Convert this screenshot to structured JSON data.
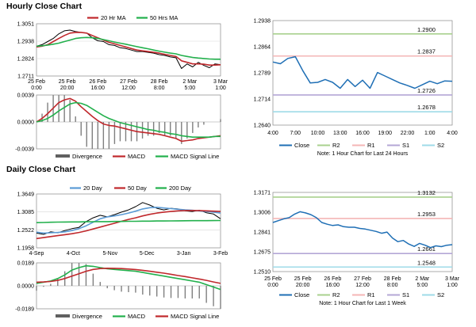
{
  "titles": {
    "hourly": "Hourly Close Chart",
    "daily": "Daily Close Chart"
  },
  "colors": {
    "close": "#000000",
    "red": "#c0282c",
    "green": "#22b04c",
    "blue": "#5b9bd5",
    "r2": "#a9d18e",
    "r1": "#f4b6b6",
    "s1": "#b4a7d6",
    "s2": "#9fdbe8",
    "closeLine": "#1f6fb5",
    "hist": "#7f7f7f"
  },
  "chart_data": [
    {
      "type": "line",
      "panel": "hourly-price",
      "ylim": [
        1.2711,
        1.3051
      ],
      "y_ticks": [
        "1.3051",
        "1.2938",
        "1.2824",
        "1.2711"
      ],
      "x_ticks": [
        "25 Feb\n0:00",
        "25 Feb\n20:00",
        "26 Feb\n16:00",
        "27 Feb\n12:00",
        "28 Feb\n8:00",
        "2 Mar\n5:00",
        "3 Mar\n1:00"
      ],
      "legend": [
        "20 Hr MA",
        "50 Hrs MA"
      ],
      "series": [
        {
          "name": "Close",
          "color": "close",
          "values": [
            1.2905,
            1.2915,
            1.2935,
            1.2955,
            1.2985,
            1.3005,
            1.301,
            1.3,
            1.2995,
            1.299,
            1.296,
            1.294,
            1.2935,
            1.2915,
            1.291,
            1.2895,
            1.289,
            1.288,
            1.287,
            1.287,
            1.2865,
            1.286,
            1.285,
            1.2845,
            1.2835,
            1.283,
            1.276,
            1.279,
            1.277,
            1.28,
            1.278,
            1.2765,
            1.279,
            1.2785
          ]
        },
        {
          "name": "20 Hr MA",
          "color": "red",
          "values": [
            1.29,
            1.2905,
            1.2915,
            1.2935,
            1.2955,
            1.2975,
            1.299,
            1.2995,
            1.2995,
            1.299,
            1.2975,
            1.296,
            1.2945,
            1.293,
            1.292,
            1.291,
            1.29,
            1.289,
            1.288,
            1.2875,
            1.287,
            1.2865,
            1.286,
            1.2852,
            1.2845,
            1.2838,
            1.281,
            1.28,
            1.279,
            1.279,
            1.2788,
            1.2782,
            1.2782,
            1.2784
          ]
        },
        {
          "name": "50 Hrs MA",
          "color": "green",
          "values": [
            1.2905,
            1.2908,
            1.2912,
            1.2918,
            1.2925,
            1.2935,
            1.2945,
            1.2955,
            1.296,
            1.2962,
            1.296,
            1.2955,
            1.2948,
            1.294,
            1.2932,
            1.2925,
            1.2918,
            1.291,
            1.2902,
            1.2895,
            1.2888,
            1.288,
            1.2873,
            1.2866,
            1.286,
            1.2855,
            1.2845,
            1.2838,
            1.2832,
            1.2828,
            1.2825,
            1.2822,
            1.282,
            1.282
          ]
        }
      ]
    },
    {
      "type": "line",
      "panel": "hourly-macd",
      "ylim": [
        -0.0039,
        0.0039
      ],
      "y_ticks": [
        "0.0039",
        "0.0000",
        "-0.0039"
      ],
      "legend": [
        "Divergence",
        "MACD",
        "MACD Signal Line"
      ],
      "series": [
        {
          "name": "MACD",
          "color": "red",
          "values": [
            0.0,
            0.0005,
            0.0012,
            0.002,
            0.0028,
            0.0032,
            0.0034,
            0.003,
            0.0022,
            0.0015,
            0.0008,
            0.0002,
            -0.0003,
            -0.0005,
            -0.0006,
            -0.0008,
            -0.001,
            -0.0012,
            -0.0014,
            -0.0015,
            -0.0016,
            -0.0017,
            -0.0018,
            -0.002,
            -0.0022,
            -0.0024,
            -0.0028,
            -0.0027,
            -0.0026,
            -0.0024,
            -0.0023,
            -0.0022,
            -0.0021,
            -0.002
          ]
        },
        {
          "name": "MACD Signal Line",
          "color": "green",
          "values": [
            0.0,
            0.0002,
            0.0005,
            0.001,
            0.0016,
            0.0021,
            0.0026,
            0.0028,
            0.0027,
            0.0024,
            0.0019,
            0.0014,
            0.0009,
            0.0005,
            0.0002,
            -0.0001,
            -0.0003,
            -0.0005,
            -0.0007,
            -0.0009,
            -0.0011,
            -0.0012,
            -0.0014,
            -0.0015,
            -0.0017,
            -0.0018,
            -0.002,
            -0.0021,
            -0.0022,
            -0.0022,
            -0.0022,
            -0.0022,
            -0.0021,
            -0.0021
          ]
        }
      ]
    },
    {
      "type": "line",
      "panel": "hourly-pivot",
      "ylim": [
        1.264,
        1.2938
      ],
      "y_ticks": [
        "1.2938",
        "1.2864",
        "1.2789",
        "1.2714",
        "1.2640"
      ],
      "x_ticks": [
        "4:00",
        "7:00",
        "10:00",
        "13:00",
        "16:00",
        "19:00",
        "22:00",
        "1:00",
        "4:00"
      ],
      "levels": [
        {
          "name": "R2",
          "value": 1.29,
          "label": "1.2900",
          "color": "r2"
        },
        {
          "name": "R1",
          "value": 1.2837,
          "label": "1.2837",
          "color": "r1"
        },
        {
          "name": "S1",
          "value": 1.2726,
          "label": "1.2726",
          "color": "s1"
        },
        {
          "name": "S2",
          "value": 1.2678,
          "label": "1.2678",
          "color": "s2"
        }
      ],
      "series": [
        {
          "name": "Close",
          "color": "closeLine",
          "values": [
            1.282,
            1.2815,
            1.283,
            1.2835,
            1.2795,
            1.276,
            1.2762,
            1.277,
            1.2762,
            1.2745,
            1.277,
            1.275,
            1.2768,
            1.2745,
            1.279,
            1.278,
            1.277,
            1.276,
            1.2753,
            1.2745,
            1.2755,
            1.2765,
            1.2758,
            1.2766,
            1.2765
          ]
        }
      ],
      "legend": [
        "Close",
        "R2",
        "R1",
        "S1",
        "S2"
      ],
      "note": "Note: 1 Hour Chart for Last 24 Hours"
    },
    {
      "type": "line",
      "panel": "daily-price",
      "ylim": [
        1.1958,
        1.3649
      ],
      "y_ticks": [
        "1.3649",
        "1.3085",
        "1.2522",
        "1.1958"
      ],
      "x_ticks": [
        "4-Sep",
        "4-Oct",
        "5-Nov",
        "5-Dec",
        "3-Jan",
        "3-Feb"
      ],
      "legend": [
        "20 Day",
        "50 Day",
        "200 Day"
      ],
      "series": [
        {
          "name": "Close",
          "color": "close",
          "values": [
            1.242,
            1.238,
            1.246,
            1.243,
            1.25,
            1.256,
            1.26,
            1.278,
            1.29,
            1.298,
            1.293,
            1.3,
            1.308,
            1.315,
            1.325,
            1.338,
            1.33,
            1.32,
            1.315,
            1.32,
            1.318,
            1.312,
            1.31,
            1.314,
            1.306,
            1.302,
            1.287
          ]
        },
        {
          "name": "20 Day",
          "color": "blue",
          "values": [
            1.245,
            1.242,
            1.243,
            1.244,
            1.246,
            1.25,
            1.256,
            1.265,
            1.276,
            1.287,
            1.293,
            1.296,
            1.3,
            1.305,
            1.311,
            1.318,
            1.322,
            1.323,
            1.321,
            1.319,
            1.317,
            1.315,
            1.314,
            1.312,
            1.31,
            1.308,
            1.305
          ]
        },
        {
          "name": "50 Day",
          "color": "red",
          "values": [
            1.225,
            1.228,
            1.231,
            1.234,
            1.237,
            1.24,
            1.244,
            1.249,
            1.255,
            1.261,
            1.267,
            1.273,
            1.279,
            1.285,
            1.29,
            1.296,
            1.301,
            1.305,
            1.308,
            1.31,
            1.312,
            1.313,
            1.313,
            1.313,
            1.312,
            1.311,
            1.31
          ]
        },
        {
          "name": "200 Day",
          "color": "green",
          "values": [
            1.275,
            1.2755,
            1.276,
            1.2765,
            1.2768,
            1.277,
            1.2772,
            1.2775,
            1.2778,
            1.278,
            1.2782,
            1.2785,
            1.2787,
            1.279,
            1.2792,
            1.2795,
            1.2797,
            1.28,
            1.2802,
            1.2804,
            1.2806,
            1.2808,
            1.281,
            1.2811,
            1.2812,
            1.2813,
            1.2815
          ]
        }
      ]
    },
    {
      "type": "line",
      "panel": "daily-macd",
      "ylim": [
        -0.0189,
        0.0189
      ],
      "y_ticks": [
        "0.0189",
        "0.0000",
        "-0.0189"
      ],
      "legend": [
        "Divergence",
        "MACD",
        "MACD Signal Line"
      ],
      "series": [
        {
          "name": "MACD",
          "color": "green",
          "values": [
            0.002,
            0.003,
            0.004,
            0.006,
            0.009,
            0.013,
            0.015,
            0.0165,
            0.016,
            0.015,
            0.014,
            0.0135,
            0.013,
            0.0125,
            0.012,
            0.011,
            0.01,
            0.009,
            0.008,
            0.007,
            0.006,
            0.005,
            0.004,
            0.003,
            0.001,
            -0.001,
            -0.003
          ]
        },
        {
          "name": "MACD Signal Line",
          "color": "red",
          "values": [
            0.003,
            0.0032,
            0.0036,
            0.0045,
            0.006,
            0.008,
            0.01,
            0.012,
            0.0135,
            0.0142,
            0.0145,
            0.0144,
            0.0142,
            0.0138,
            0.0134,
            0.0128,
            0.012,
            0.0112,
            0.0104,
            0.0095,
            0.0085,
            0.0076,
            0.0066,
            0.0056,
            0.0045,
            0.0032,
            0.002
          ]
        }
      ]
    },
    {
      "type": "line",
      "panel": "daily-pivot",
      "ylim": [
        1.251,
        1.3171
      ],
      "y_ticks": [
        "1.3171",
        "1.3006",
        "1.2841",
        "1.2675",
        "1.2510"
      ],
      "x_ticks": [
        "25 Feb\n0:00",
        "25 Feb\n20:00",
        "26 Feb\n16:00",
        "27 Feb\n12:00",
        "28 Feb\n8:00",
        "2 Mar\n5:00",
        "3 Mar\n1:00"
      ],
      "levels": [
        {
          "name": "R2",
          "value": 1.3132,
          "label": "1.3132",
          "color": "r2"
        },
        {
          "name": "R1",
          "value": 1.2953,
          "label": "1.2953",
          "color": "r1"
        },
        {
          "name": "S1",
          "value": 1.2661,
          "label": "1.2661",
          "color": "s1"
        },
        {
          "name": "S2",
          "value": 1.2548,
          "label": "1.2548",
          "color": "s2"
        }
      ],
      "series": [
        {
          "name": "Close",
          "color": "closeLine",
          "values": [
            1.292,
            1.2935,
            1.295,
            1.296,
            1.299,
            1.301,
            1.3,
            1.2985,
            1.296,
            1.292,
            1.2905,
            1.2895,
            1.29,
            1.2885,
            1.288,
            1.288,
            1.287,
            1.2865,
            1.2855,
            1.2845,
            1.283,
            1.284,
            1.279,
            1.276,
            1.277,
            1.274,
            1.272,
            1.2745,
            1.273,
            1.271,
            1.2725,
            1.2718,
            1.273,
            1.2735
          ]
        }
      ],
      "legend": [
        "Close",
        "R2",
        "R1",
        "S1",
        "S2"
      ],
      "note": "Note: 1 Hour Chart for Last 1 Week"
    }
  ]
}
